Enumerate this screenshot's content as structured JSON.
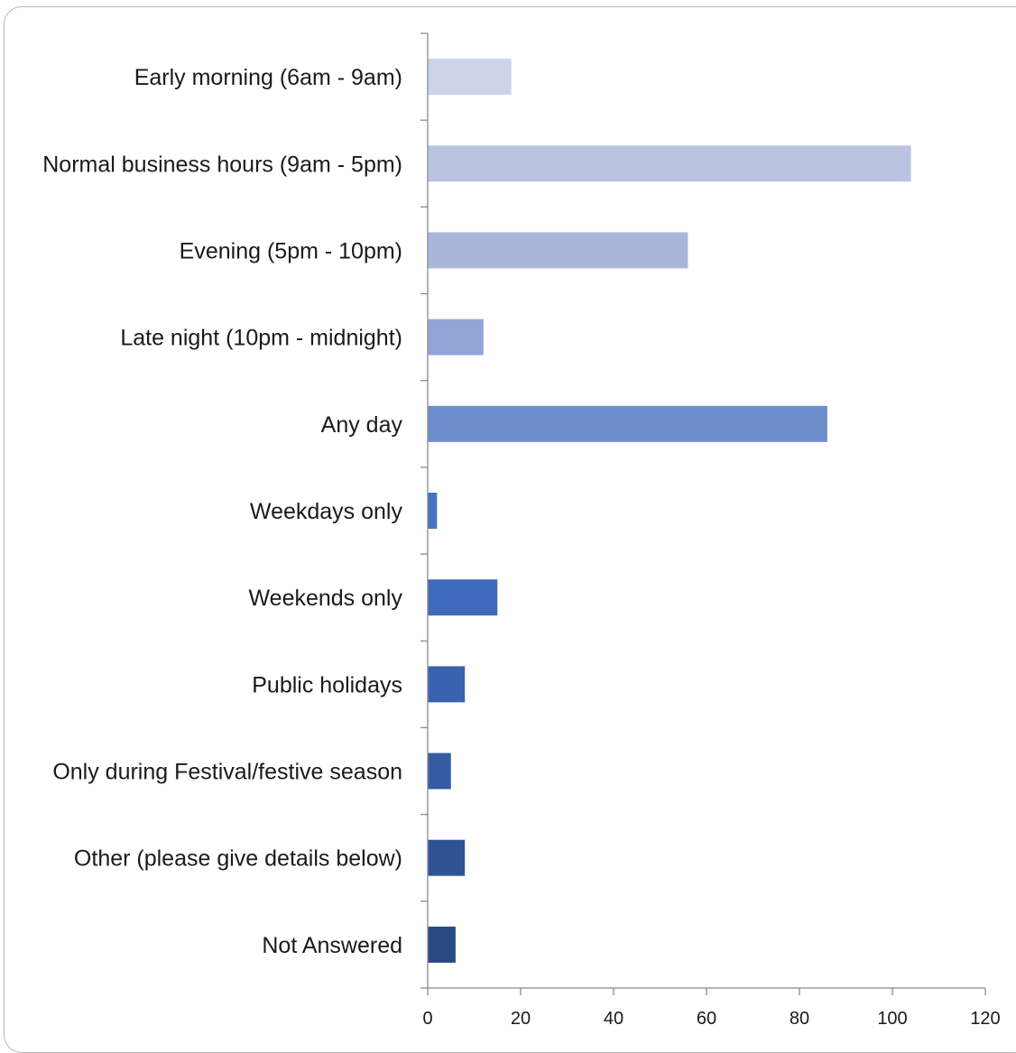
{
  "chart_data": {
    "type": "bar",
    "orientation": "horizontal",
    "categories": [
      "Early morning (6am - 9am)",
      "Normal business hours (9am - 5pm)",
      "Evening (5pm - 10pm)",
      "Late night (10pm - midnight)",
      "Any day",
      "Weekdays only",
      "Weekends only",
      "Public holidays",
      "Only during Festival/festive season",
      "Other (please give details below)",
      "Not Answered"
    ],
    "values": [
      18,
      104,
      56,
      12,
      86,
      2,
      15,
      8,
      5,
      8,
      6
    ],
    "colors": [
      "#cdd4ea",
      "#bac4e2",
      "#a8b6dc",
      "#92a5d6",
      "#6e8dcc",
      "#4872c4",
      "#4069bb",
      "#3a62b0",
      "#355ba4",
      "#315395",
      "#2b4883"
    ],
    "x_ticks": [
      "0",
      "20",
      "40",
      "60",
      "80",
      "100",
      "120"
    ],
    "xlim": [
      0,
      120
    ],
    "title": "",
    "xlabel": "",
    "ylabel": "",
    "grid": false,
    "legend": "none"
  }
}
